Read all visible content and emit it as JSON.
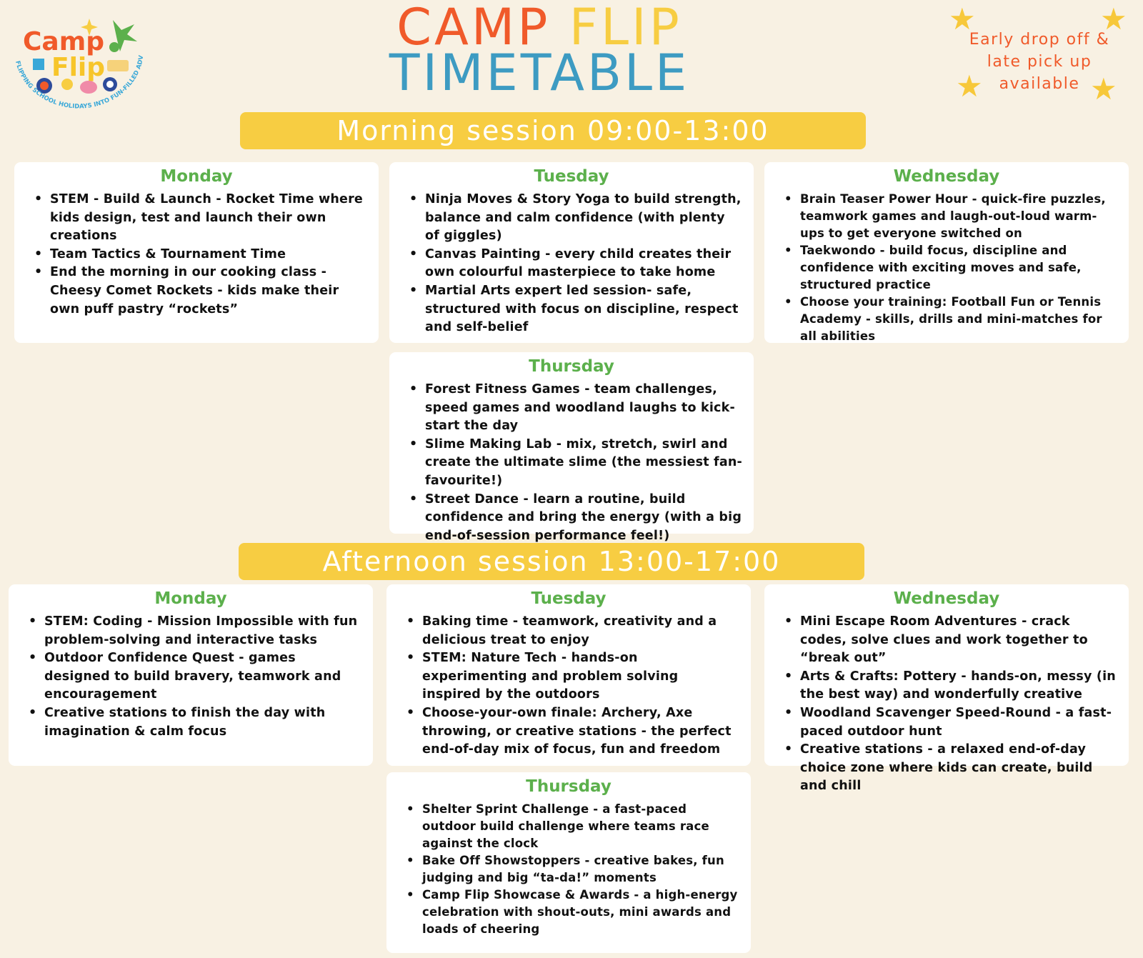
{
  "logo": {
    "line1": "Camp",
    "line2": "Flip",
    "tagline": "FLIPPING SCHOOL HOLIDAYS INTO FUN-FILLED ADVENTURES"
  },
  "header": {
    "title_part1": "CAMP",
    "title_part2": "FLIP",
    "title_line2": "TIMETABLE",
    "note": "Early drop off & late pick up available"
  },
  "colors": {
    "background": "#f8f1e3",
    "orange": "#f05a2a",
    "yellow": "#f7cd42",
    "blue": "#3d9bc2",
    "green": "#5cb04c"
  },
  "morning": {
    "banner": "Morning session 09:00-13:00",
    "days": [
      {
        "day": "Monday",
        "items": [
          "STEM - Build & Launch - Rocket Time where kids design, test and launch their own creations",
          "Team Tactics & Tournament Time",
          "End the morning in our cooking class - Cheesy Comet Rockets - kids make their own puff pastry “rockets”"
        ]
      },
      {
        "day": "Tuesday",
        "items": [
          "Ninja Moves & Story Yoga to build strength, balance and calm confidence (with plenty of giggles)",
          "Canvas Painting - every child creates their own colourful masterpiece to take home",
          "Martial Arts expert led session- safe, structured with focus on discipline, respect and self-belief"
        ]
      },
      {
        "day": "Wednesday",
        "items": [
          "Brain Teaser Power Hour - quick-fire puzzles, teamwork games and laugh-out-loud warm-ups to get everyone switched on",
          "Taekwondo - build focus, discipline and confidence with exciting moves and safe, structured practice",
          "Choose your training: Football Fun or Tennis Academy - skills, drills and mini-matches for all abilities"
        ]
      },
      {
        "day": "Thursday",
        "items": [
          "Forest Fitness Games - team challenges, speed games and woodland laughs to kick-start the day",
          "Slime Making Lab - mix, stretch, swirl and create the ultimate slime (the messiest fan-favourite!)",
          "Street Dance - learn a routine, build confidence and bring the energy (with a big end-of-session performance feel!)"
        ]
      }
    ]
  },
  "afternoon": {
    "banner": "Afternoon session 13:00-17:00",
    "days": [
      {
        "day": "Monday",
        "items": [
          "STEM: Coding - Mission Impossible with fun problem-solving and interactive tasks",
          "Outdoor Confidence Quest - games designed to build bravery, teamwork and encouragement",
          "Creative stations to finish the day with imagination & calm focus"
        ]
      },
      {
        "day": "Tuesday",
        "items": [
          "Baking time - teamwork, creativity and a delicious treat to enjoy",
          "STEM: Nature Tech - hands-on experimenting and problem solving inspired by the outdoors",
          "Choose-your-own finale: Archery, Axe throwing, or creative stations - the perfect end-of-day mix of focus, fun and freedom"
        ]
      },
      {
        "day": "Wednesday",
        "items": [
          "Mini Escape Room Adventures - crack codes, solve clues and work together to “break out”",
          "Arts & Crafts: Pottery - hands-on, messy (in the best way) and wonderfully creative",
          "Woodland Scavenger Speed-Round - a fast-paced outdoor hunt",
          "Creative stations - a relaxed end-of-day choice zone where kids can create, build and chill"
        ]
      },
      {
        "day": "Thursday",
        "items": [
          "Shelter Sprint Challenge - a fast-paced outdoor build challenge where teams race against the clock",
          "Bake Off Showstoppers - creative bakes, fun judging and big “ta-da!” moments",
          "Camp Flip Showcase & Awards - a high-energy celebration with shout-outs, mini awards and loads of cheering"
        ]
      }
    ]
  }
}
